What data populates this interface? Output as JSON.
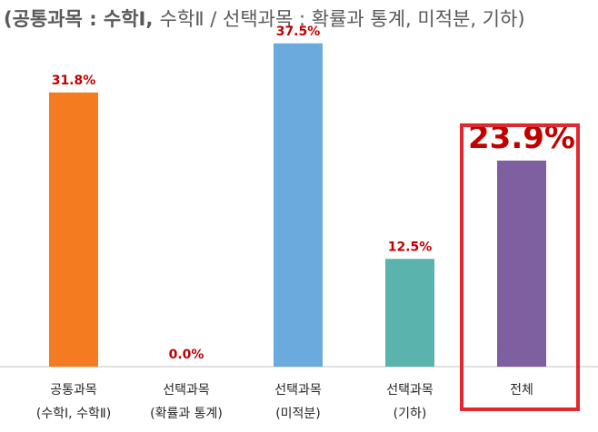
{
  "title": {
    "bold": "(공통과목 : 수학Ⅰ, ",
    "normal": "수학Ⅱ   / 선택과목 : 확률과 통계, 미적분, 기하)"
  },
  "chart_data": {
    "type": "bar",
    "title": "(공통과목 : 수학Ⅰ, 수학Ⅱ / 선택과목 : 확률과 통계, 미적분, 기하)",
    "xlabel": "",
    "ylabel": "",
    "ylim": [
      0,
      40
    ],
    "grid": false,
    "legend": "none",
    "categories": [
      [
        "공통과목",
        "(수학Ⅰ, 수학Ⅱ)"
      ],
      [
        "선택과목",
        "(확률과 통계)"
      ],
      [
        "선택과목",
        "(미적분)"
      ],
      [
        "선택과목",
        "(기하)"
      ],
      [
        "전체"
      ]
    ],
    "values": [
      31.8,
      0.0,
      37.5,
      12.5,
      23.9
    ],
    "data_labels": [
      "31.8%",
      "0.0%",
      "37.5%",
      "12.5%",
      "23.9%"
    ],
    "colors": [
      "#F47B20",
      "#F47B20",
      "#6AAADC",
      "#5BB3AE",
      "#7E5F9F"
    ],
    "label_color": "#C00000",
    "highlight": {
      "index": 4,
      "border_color": "#E0282E"
    }
  }
}
